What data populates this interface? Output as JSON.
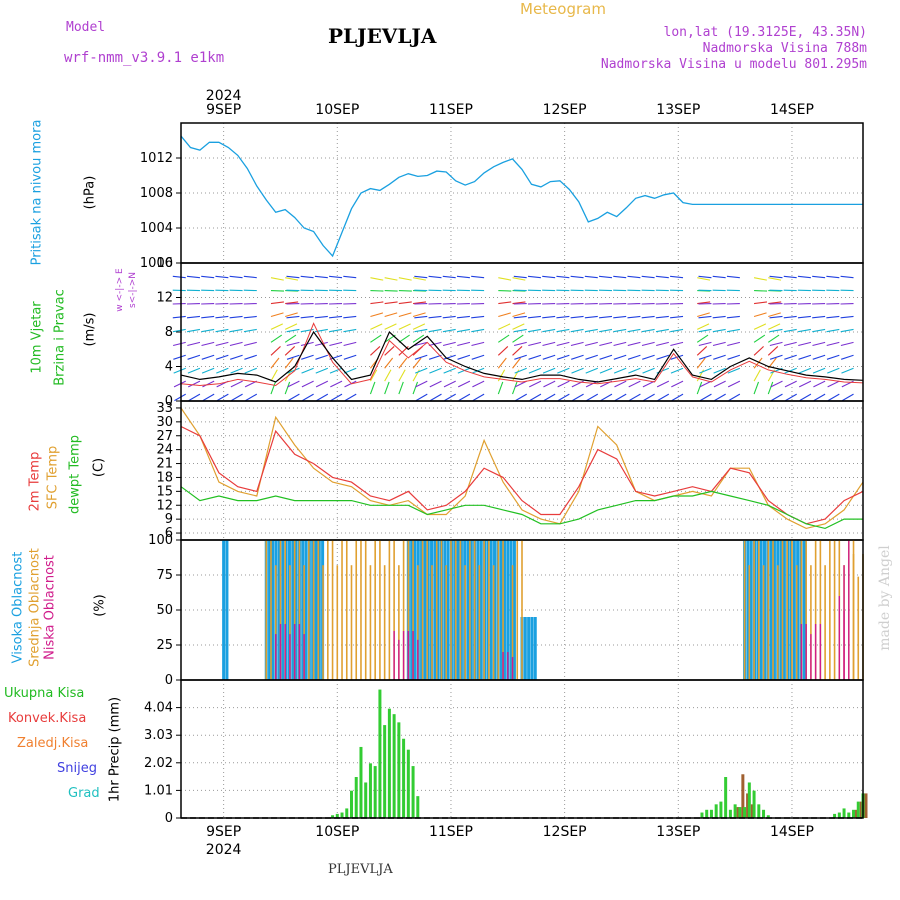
{
  "header": {
    "model_label": "Model",
    "model_name": "wrf-nmm_v3.9.1 e1km",
    "station": "PLJEVLJA",
    "meteogram": "Meteogram",
    "lonlat": "lon,lat (19.3125E, 43.35N)",
    "altitude": "Nadmorska Visina 788m",
    "model_altitude": "Nadmorska Visina u modelu 801.295m",
    "footer_station": "PLJEVLJA",
    "credit": "made by Angel"
  },
  "dates": {
    "year": "2024",
    "labels": [
      "9SEP",
      "10SEP",
      "11SEP",
      "12SEP",
      "13SEP",
      "14SEP"
    ]
  },
  "panel_labels": {
    "pressure": {
      "name": "Pritisak na nivou mora",
      "unit": "(hPa)"
    },
    "wind": {
      "name1": "10m Vjetar",
      "name2": "Brzina i Pravac",
      "unit": "(m/s)",
      "compass": "w <-|-> E",
      "compass2": "s<-|->N"
    },
    "temp": {
      "t2m": "2m Temp",
      "sfc": "SFC Temp",
      "dew": "dewpt Temp",
      "unit": "(C)"
    },
    "cloud": {
      "high": "Visoka Oblacnost",
      "mid": "Srednja Oblacnost",
      "low": "Niska Oblacnost",
      "unit": "(%)"
    },
    "precip": {
      "total": "Ukupna Kisa",
      "conv": "Konvek.Kisa",
      "frozen": "Zaledj.Kisa",
      "snow": "Snijeg",
      "grad": "Grad",
      "unit": "1hr Precip (mm)"
    }
  },
  "colors": {
    "pressure": "#1aa0e0",
    "t2m": "#e83c3c",
    "sfc": "#e0a030",
    "dew": "#22c022",
    "high_cloud": "#1aa0e0",
    "mid_cloud": "#e0a030",
    "low_cloud": "#d01c8b",
    "total_precip": "#33cc33",
    "conv_precip": "#a06030",
    "label_green": "#22bb22",
    "label_red": "#e83c3c",
    "label_orange": "#f08030",
    "label_blue": "#4040e0",
    "label_cyan": "#20c0c0",
    "label_magenta": "#d01c8b"
  },
  "chart_data": [
    {
      "type": "line",
      "panel": "pressure",
      "xlabel_unit": "forecast hour from 2024-09-08 12h",
      "ylabel": "Pritisak na nivou mora (hPa)",
      "ylim": [
        1000,
        1016
      ],
      "yticks": [
        "1000",
        "1004",
        "1008",
        "1012"
      ],
      "x": [
        0,
        2,
        4,
        6,
        8,
        10,
        12,
        14,
        16,
        18,
        20,
        22,
        24,
        26,
        28,
        30,
        32,
        34,
        36,
        38,
        40,
        42,
        44,
        46,
        48,
        50,
        52,
        54,
        56,
        58,
        60,
        62,
        64,
        66,
        68,
        70,
        72,
        74,
        76,
        78,
        80,
        82,
        84,
        86,
        88,
        90,
        92,
        94,
        96,
        98,
        100,
        102,
        104,
        106,
        108,
        110,
        112,
        114,
        116,
        118,
        120,
        122,
        124,
        126,
        128,
        130,
        132,
        134,
        136,
        138,
        140,
        142,
        144
      ],
      "series": [
        {
          "values": [
            1014.5,
            1013.2,
            1012.9,
            1013.8,
            1013.8,
            1013.2,
            1012.3,
            1010.8,
            1008.8,
            1007.2,
            1005.8,
            1006.1,
            1005.2,
            1004.0,
            1003.6,
            1002.0,
            1000.8,
            1003.5,
            1006.2,
            1008.0,
            1008.5,
            1008.3,
            1009.0,
            1009.8,
            1010.2,
            1009.9,
            1010.0,
            1010.5,
            1010.4,
            1009.4,
            1008.9,
            1009.3,
            1010.3,
            1011.0,
            1011.5,
            1011.9,
            1010.7,
            1009.0,
            1008.7,
            1009.3,
            1009.4,
            1008.4,
            1007.0,
            1004.7,
            1005.1,
            1005.8,
            1005.3,
            1006.3,
            1007.4,
            1007.7,
            1007.4,
            1007.8,
            1008.0,
            1006.9,
            1006.7,
            1006.7,
            1006.7,
            1006.7,
            1006.7,
            1006.7,
            1006.7,
            1006.7,
            1006.7,
            1006.7,
            1006.7,
            1006.7,
            1006.7,
            1006.7,
            1006.7,
            1006.7,
            1006.7,
            1006.7,
            1006.7
          ]
        }
      ]
    },
    {
      "type": "line",
      "panel": "wind",
      "ylabel": "10m Vjetar Brzina i Pravac (m/s)",
      "ylim": [
        0,
        16
      ],
      "yticks": [
        "0",
        "4",
        "8",
        "12",
        "16"
      ],
      "x": [
        0,
        4,
        8,
        12,
        16,
        20,
        24,
        28,
        32,
        36,
        40,
        44,
        48,
        52,
        56,
        60,
        64,
        68,
        72,
        76,
        80,
        84,
        88,
        92,
        96,
        100,
        104,
        108,
        112,
        116,
        120,
        124,
        128,
        132,
        136,
        140,
        144
      ],
      "series": [
        {
          "name": "speed",
          "values": [
            3,
            2.5,
            2.8,
            3.2,
            3,
            2.2,
            4,
            8,
            5,
            2.5,
            3,
            8,
            6,
            7.5,
            5,
            4,
            3.2,
            2.8,
            2.5,
            3,
            3,
            2.5,
            2.2,
            2.6,
            3,
            2.5,
            6,
            3,
            2.5,
            4,
            5,
            4,
            3.5,
            3,
            2.8,
            2.5,
            2.4
          ]
        },
        {
          "name": "gust",
          "values": [
            2,
            1.8,
            2,
            2.5,
            2.2,
            1.8,
            3.5,
            9,
            4.5,
            2,
            2.5,
            7,
            5,
            6.8,
            4.5,
            3.5,
            2.8,
            2.5,
            2.2,
            2.6,
            2.6,
            2.2,
            2,
            2.3,
            2.6,
            2.2,
            5.5,
            2.8,
            2.2,
            3.6,
            4.6,
            3.6,
            3.1,
            2.7,
            2.5,
            2.2,
            2.1
          ]
        }
      ]
    },
    {
      "type": "line",
      "panel": "temperature",
      "ylabel": "(C)",
      "ylim": [
        4.5,
        34.5
      ],
      "yticks": [
        "6",
        "9",
        "12",
        "15",
        "18",
        "21",
        "24",
        "27",
        "30",
        "33"
      ],
      "x": [
        0,
        4,
        8,
        12,
        16,
        20,
        24,
        28,
        32,
        36,
        40,
        44,
        48,
        52,
        56,
        60,
        64,
        68,
        72,
        76,
        80,
        84,
        88,
        92,
        96,
        100,
        104,
        108,
        112,
        116,
        120,
        124,
        128,
        132,
        136,
        140,
        144
      ],
      "series": [
        {
          "name": "2m Temp",
          "values": [
            29,
            27,
            19,
            16,
            15,
            28,
            23,
            21,
            18,
            17,
            14,
            13,
            15,
            11,
            12,
            15,
            20,
            18,
            13,
            10,
            10,
            16,
            24,
            22,
            15,
            14,
            15,
            16,
            15,
            20,
            19,
            13,
            10,
            8,
            9,
            13,
            15
          ]
        },
        {
          "name": "SFC Temp",
          "values": [
            33,
            27,
            17,
            15,
            14,
            31,
            25,
            20,
            17,
            16,
            13,
            12,
            13,
            10,
            10,
            14,
            26,
            17,
            11,
            9,
            8,
            15,
            29,
            25,
            15,
            13,
            14,
            15,
            14,
            20,
            20,
            12,
            9,
            7,
            8,
            11,
            17
          ]
        },
        {
          "name": "dewpt Temp",
          "values": [
            16,
            13,
            14,
            13,
            13,
            14,
            13,
            13,
            13,
            13,
            12,
            12,
            12,
            10,
            11,
            12,
            12,
            11,
            10,
            8,
            8,
            9,
            11,
            12,
            13,
            13,
            14,
            14,
            15,
            14,
            13,
            12,
            10,
            8,
            7,
            9,
            9
          ]
        }
      ]
    },
    {
      "type": "bar",
      "panel": "cloud",
      "ylabel": "(%)",
      "ylim": [
        0,
        100
      ],
      "yticks": [
        "0",
        "25",
        "50",
        "75",
        "100"
      ],
      "series": [
        {
          "name": "Visoka Oblacnost",
          "segments": [
            [
              9,
              10,
              100
            ],
            [
              18,
              30,
              100
            ],
            [
              48,
              71,
              100
            ],
            [
              72,
              75,
              45
            ],
            [
              119,
              132,
              100
            ]
          ]
        },
        {
          "name": "Srednja Oblacnost",
          "segments": [
            [
              18,
              68,
              100
            ],
            [
              70,
              72,
              100
            ],
            [
              119,
              142,
              100
            ],
            [
              142,
              144,
              90
            ]
          ]
        },
        {
          "name": "Niska Oblacnost",
          "segments": [
            [
              20,
              26,
              40
            ],
            [
              45,
              50,
              35
            ],
            [
              68,
              70,
              20
            ],
            [
              131,
              135,
              40
            ],
            [
              139,
              140,
              60
            ],
            [
              140,
              141,
              100
            ]
          ]
        }
      ]
    },
    {
      "type": "bar",
      "panel": "precip",
      "ylabel": "1hr Precip (mm)",
      "ylim": [
        0,
        5.05
      ],
      "yticks": [
        "0",
        "1.01",
        "2.02",
        "3.03",
        "4.04"
      ],
      "x": [
        32,
        33,
        34,
        35,
        36,
        37,
        38,
        39,
        40,
        41,
        42,
        43,
        44,
        45,
        46,
        47,
        48,
        49,
        50,
        110,
        111,
        112,
        113,
        114,
        115,
        116,
        117,
        118,
        119,
        120,
        121,
        122,
        123,
        124,
        138,
        139,
        140,
        141,
        142,
        143,
        144
      ],
      "series": [
        {
          "name": "Ukupna Kisa",
          "values": [
            0.1,
            0.15,
            0.2,
            0.35,
            1.0,
            1.5,
            2.6,
            1.3,
            2.0,
            1.9,
            4.7,
            3.4,
            4.0,
            3.8,
            3.5,
            2.9,
            2.5,
            1.9,
            0.8,
            0.2,
            0.3,
            0.3,
            0.5,
            0.6,
            1.5,
            0.3,
            0.5,
            0.4,
            0.4,
            1.3,
            1.0,
            0.5,
            0.3,
            0.1,
            0.15,
            0.2,
            0.35,
            0.2,
            0.3,
            0.6,
            0.9
          ]
        },
        {
          "name": "Konvek.Kisa",
          "values": [
            0,
            0,
            0,
            0,
            0,
            0,
            0,
            0,
            0,
            0,
            0,
            0,
            0,
            0,
            0,
            0,
            0,
            0,
            0,
            0,
            0,
            0,
            0,
            0,
            0,
            0,
            0.4,
            1.6,
            0.9,
            0.5,
            0,
            0,
            0,
            0,
            0,
            0,
            0,
            0,
            0.3,
            0.6,
            0.9
          ]
        }
      ]
    }
  ]
}
